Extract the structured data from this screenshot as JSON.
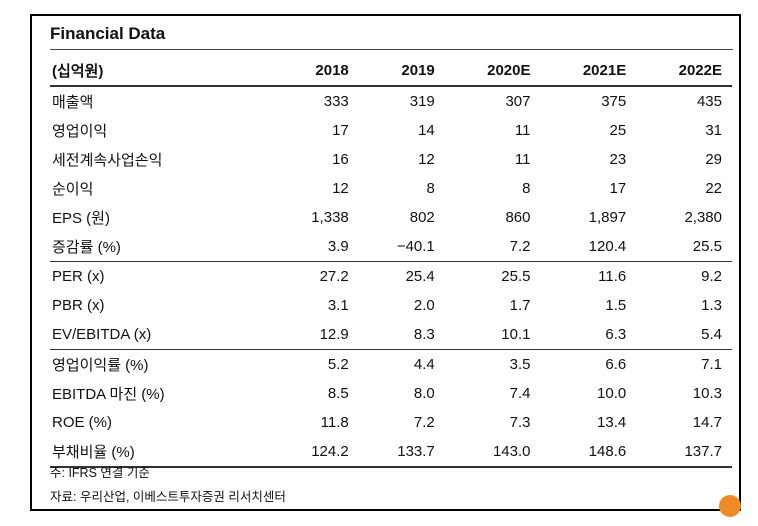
{
  "title": "Financial Data",
  "table": {
    "header": [
      "(십억원)",
      "2018",
      "2019",
      "2020E",
      "2021E",
      "2022E"
    ],
    "rows": [
      {
        "label": "매출액",
        "values": [
          "333",
          "319",
          "307",
          "375",
          "435"
        ]
      },
      {
        "label": "영업이익",
        "values": [
          "17",
          "14",
          "11",
          "25",
          "31"
        ]
      },
      {
        "label": "세전계속사업손익",
        "values": [
          "16",
          "12",
          "11",
          "23",
          "29"
        ]
      },
      {
        "label": "순이익",
        "values": [
          "12",
          "8",
          "8",
          "17",
          "22"
        ]
      },
      {
        "label": "EPS (원)",
        "values": [
          "1,338",
          "802",
          "860",
          "1,897",
          "2,380"
        ]
      },
      {
        "label": "증감률 (%)",
        "values": [
          "3.9",
          "−40.1",
          "7.2",
          "120.4",
          "25.5"
        ]
      },
      {
        "label": "PER (x)",
        "values": [
          "27.2",
          "25.4",
          "25.5",
          "11.6",
          "9.2"
        ]
      },
      {
        "label": "PBR (x)",
        "values": [
          "3.1",
          "2.0",
          "1.7",
          "1.5",
          "1.3"
        ]
      },
      {
        "label": "EV/EBITDA (x)",
        "values": [
          "12.9",
          "8.3",
          "10.1",
          "6.3",
          "5.4"
        ]
      },
      {
        "label": "영업이익률 (%)",
        "values": [
          "5.2",
          "4.4",
          "3.5",
          "6.6",
          "7.1"
        ]
      },
      {
        "label": "EBITDA 마진 (%)",
        "values": [
          "8.5",
          "8.0",
          "7.4",
          "10.0",
          "10.3"
        ]
      },
      {
        "label": "ROE (%)",
        "values": [
          "11.8",
          "7.2",
          "7.3",
          "13.4",
          "14.7"
        ]
      },
      {
        "label": "부채비율 (%)",
        "values": [
          "124.2",
          "133.7",
          "143.0",
          "148.6",
          "137.7"
        ]
      }
    ]
  },
  "notes": {
    "note": "주: IFRS 연결 기준",
    "source": "자료: 우리산업, 이베스트투자증권 리서치센터"
  }
}
